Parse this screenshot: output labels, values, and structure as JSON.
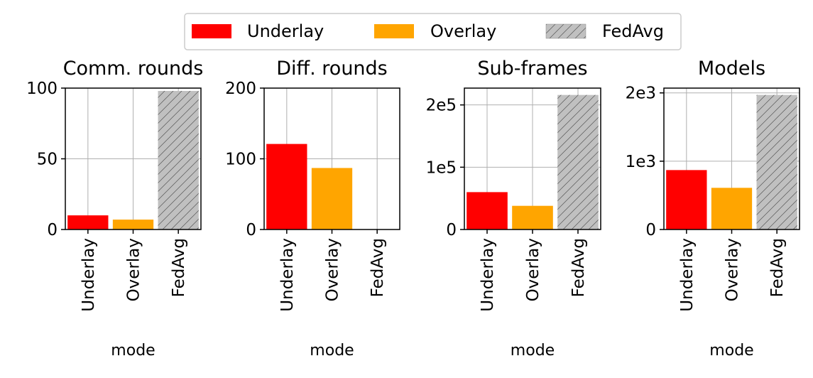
{
  "colors": {
    "Underlay": "#ff0000",
    "Overlay": "#ffa500",
    "FedAvg": "#c0c0c0",
    "grid": "#b0b0b0",
    "hatch": "#555555"
  },
  "legend": {
    "placement": "top-center",
    "entries": [
      "Underlay",
      "Overlay",
      "FedAvg"
    ]
  },
  "chart_data": [
    {
      "type": "bar",
      "title": "Comm. rounds",
      "xlabel": "mode",
      "ylabel": "",
      "categories": [
        "Underlay",
        "Overlay",
        "FedAvg"
      ],
      "values": [
        10,
        7,
        98
      ],
      "ylim": [
        0,
        100
      ],
      "yticks": [
        0,
        50,
        100
      ],
      "ytick_labels": [
        "0",
        "50",
        "100"
      ],
      "grid": true
    },
    {
      "type": "bar",
      "title": "Diff. rounds",
      "xlabel": "mode",
      "ylabel": "",
      "categories": [
        "Underlay",
        "Overlay",
        "FedAvg"
      ],
      "values": [
        121,
        87,
        0
      ],
      "ylim": [
        0,
        200
      ],
      "yticks": [
        0,
        100,
        200
      ],
      "ytick_labels": [
        "0",
        "100",
        "200"
      ],
      "grid": true
    },
    {
      "type": "bar",
      "title": "Sub-frames",
      "xlabel": "mode",
      "ylabel": "",
      "categories": [
        "Underlay",
        "Overlay",
        "FedAvg"
      ],
      "values": [
        60000,
        38000,
        216000
      ],
      "ylim": [
        0,
        227000
      ],
      "yticks": [
        0,
        100000,
        200000
      ],
      "ytick_labels": [
        "0",
        "1e5",
        "2e5"
      ],
      "grid": true
    },
    {
      "type": "bar",
      "title": "Models",
      "xlabel": "mode",
      "ylabel": "",
      "categories": [
        "Underlay",
        "Overlay",
        "FedAvg"
      ],
      "values": [
        870,
        610,
        1970
      ],
      "ylim": [
        0,
        2070
      ],
      "yticks": [
        0,
        1000,
        2000
      ],
      "ytick_labels": [
        "0",
        "1e3",
        "2e3"
      ],
      "grid": true
    }
  ]
}
